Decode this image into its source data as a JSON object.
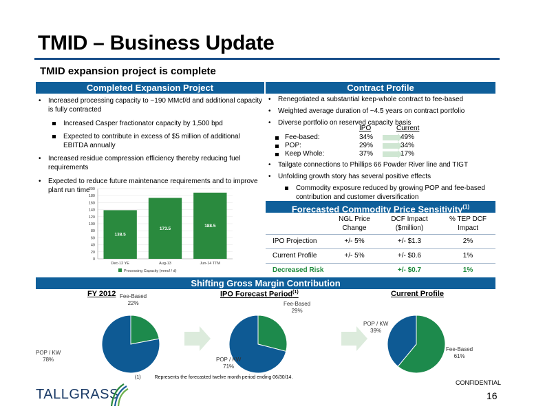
{
  "title": "TMID – Business Update",
  "subtitle": "TMID expansion project is complete",
  "left_panel": {
    "header": "Completed Expansion Project",
    "bullets": [
      {
        "text": "Increased processing capacity to ~190 MMcf/d and additional capacity is fully contracted",
        "level": 1
      },
      {
        "text": "Increased Casper fractionator capacity by 1,500 bpd",
        "level": 2
      },
      {
        "text": "Expected to contribute in excess of $5 million of additional EBITDA annually",
        "level": 2
      },
      {
        "text": "Increased residue compression efficiency thereby reducing fuel requirements",
        "level": 1
      },
      {
        "text": "Expected to reduce future maintenance requirements and to improve plant run time",
        "level": 1
      }
    ]
  },
  "chart_data": [
    {
      "type": "bar",
      "categories": [
        "Dec-12 YE",
        "Aug-13",
        "Jun-14 TTM"
      ],
      "series": [
        {
          "name": "Processing Capacity (mmcf / d)",
          "values": [
            138.5,
            173.5,
            188.5
          ]
        }
      ],
      "data_labels": [
        "138.5",
        "173.5",
        "188.5"
      ],
      "ylim": [
        0,
        200
      ],
      "yticks": [
        "0",
        "20",
        "40",
        "60",
        "80",
        "100",
        "120",
        "140",
        "160",
        "180",
        "200"
      ],
      "legend": "bottom",
      "color": "#2a8a3e"
    },
    {
      "type": "pie",
      "title": "FY 2012",
      "slices": [
        {
          "label": "Fee-Based",
          "value": 22,
          "text": "22%"
        },
        {
          "label": "POP / KW",
          "value": 78,
          "text": "78%"
        }
      ],
      "colors": [
        "#1d8a4c",
        "#0e5a94"
      ]
    },
    {
      "type": "pie",
      "title": "IPO Forecast Period",
      "title_sup": "(1)",
      "slices": [
        {
          "label": "Fee-Based",
          "value": 29,
          "text": "29%"
        },
        {
          "label": "POP / KW",
          "value": 71,
          "text": "71%"
        }
      ],
      "colors": [
        "#1d8a4c",
        "#0e5a94"
      ]
    },
    {
      "type": "pie",
      "title": "Current Profile",
      "slices": [
        {
          "label": "Fee-Based",
          "value": 61,
          "text": "61%"
        },
        {
          "label": "POP / KW",
          "value": 39,
          "text": "39%"
        }
      ],
      "colors": [
        "#1d8a4c",
        "#0e5a94"
      ]
    }
  ],
  "right_panel": {
    "header": "Contract Profile",
    "bullets_top": [
      "Renegotiated a substantial keep-whole contract to fee-based",
      "Weighted average duration of ~4.5 years on contract portfolio",
      "Diverse portfolio on reserved capacity basis"
    ],
    "alloc": {
      "col_ipo": "IPO",
      "col_current": "Current",
      "rows": [
        {
          "label": "Fee-based:",
          "ipo": "34%",
          "current": "49%"
        },
        {
          "label": "POP:",
          "ipo": "29%",
          "current": "34%"
        },
        {
          "label": "Keep Whole:",
          "ipo": "37%",
          "current": "17%"
        }
      ]
    },
    "bullets_bottom": [
      "Tailgate connections to Phillips 66 Powder River line and TIGT",
      "Unfolding growth story has several positive effects"
    ],
    "sub_bullet": "Commodity exposure reduced by growing POP and fee-based contribution and customer diversification"
  },
  "sensitivity": {
    "header": "Forecasted Commodity Price Sensitivity",
    "header_sup": "(1)",
    "columns": [
      "NGL Price Change",
      "DCF Impact ($million)",
      "% TEP DCF Impact"
    ],
    "rows": [
      {
        "label": "IPO Projection",
        "ngl": "+/- 5%",
        "dcf": "+/- $1.3",
        "pct": "2%"
      },
      {
        "label": "Current Profile",
        "ngl": "+/- 5%",
        "dcf": "+/- $0.6",
        "pct": "1%"
      },
      {
        "label": "Decreased Risk",
        "ngl": "",
        "dcf": "+/- $0.7",
        "pct": "1%"
      }
    ]
  },
  "margin_header": "Shifting Gross Margin Contribution",
  "footnote_marker": "(1)",
  "footnote": "Represents the forecasted twelve month period ending 06/30/14.",
  "confidential": "CONFIDENTIAL",
  "page_number": "16",
  "logo_text": "TALLGRASS"
}
